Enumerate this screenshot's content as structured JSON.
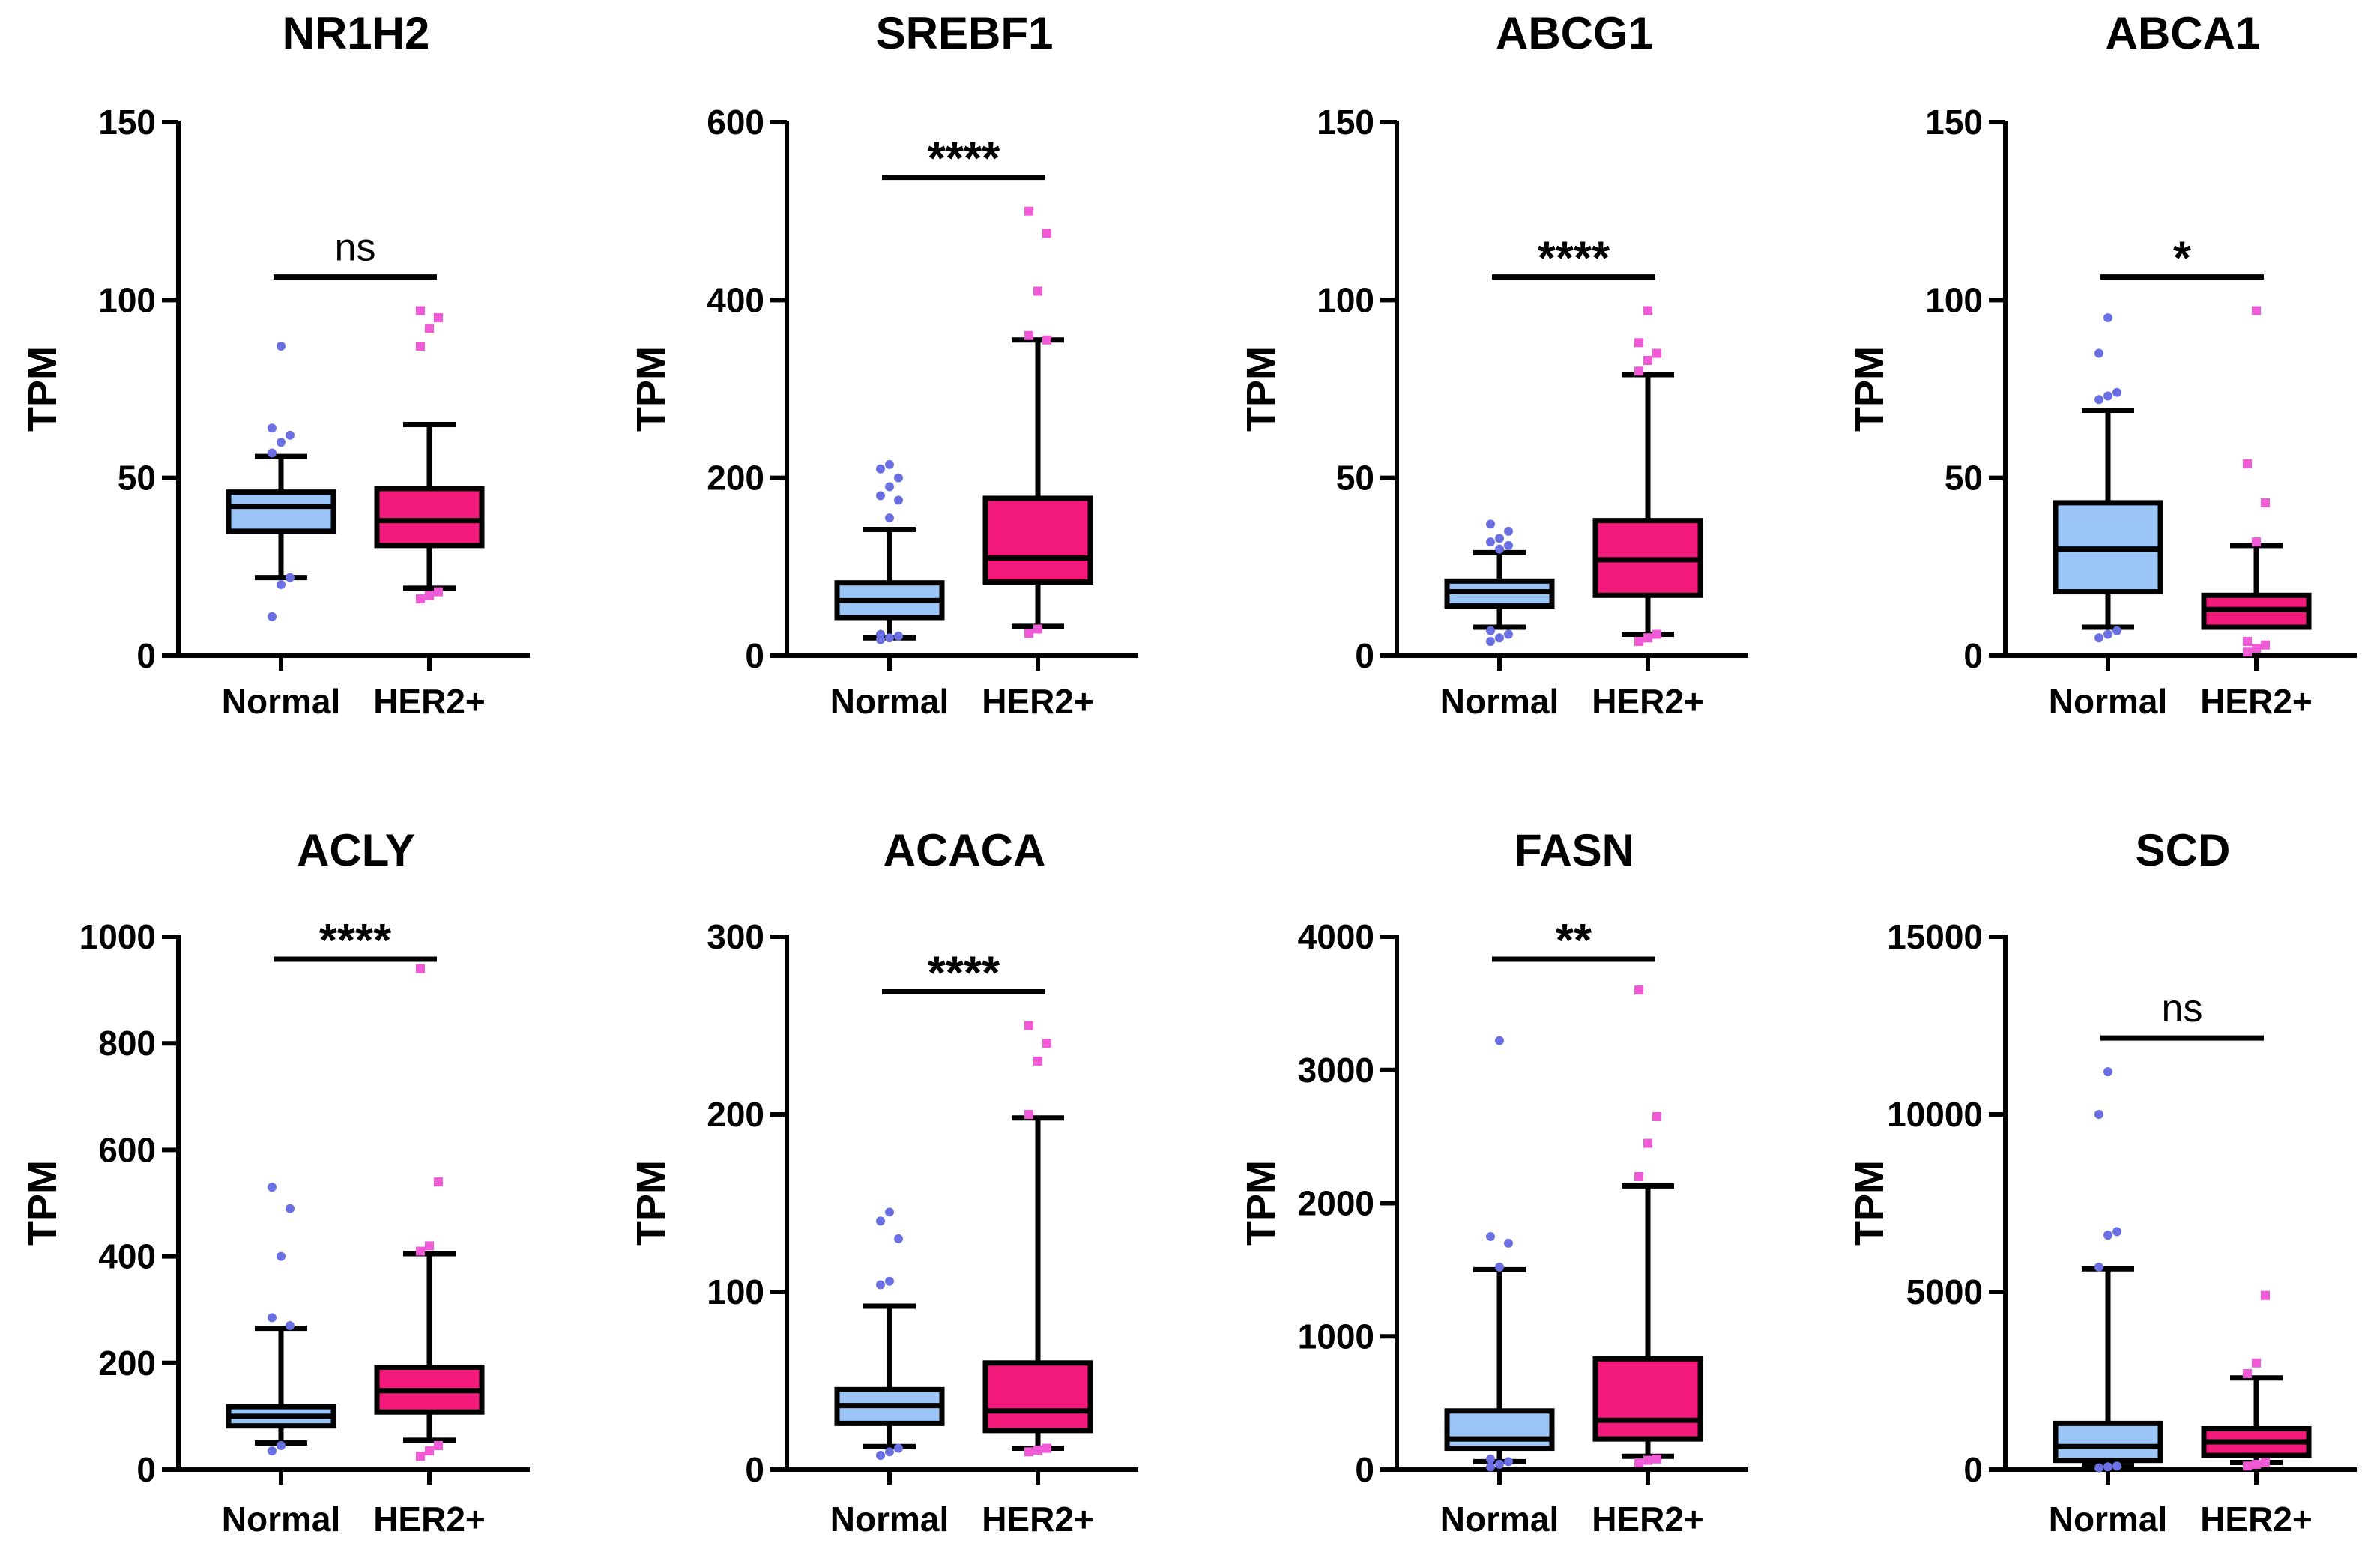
{
  "colors": {
    "normal": "#99C4F5",
    "her2": "#F2197A",
    "normal_outlier": "#6A6FE3",
    "her2_outlier": "#F05AD6",
    "axis": "#000000"
  },
  "chart_data": [
    {
      "type": "box",
      "title": "NR1H2",
      "ylabel": "TPM",
      "ylim": [
        0,
        150
      ],
      "yticks": [
        "0",
        "50",
        "100",
        "150"
      ],
      "ytick_values": [
        0,
        50,
        100,
        150
      ],
      "categories": [
        "Normal",
        "HER2+"
      ],
      "significance": "ns",
      "series": [
        {
          "min": 22,
          "q1": 35,
          "median": 42,
          "q3": 46,
          "max": 56,
          "outliers": [
            11,
            20,
            22,
            57,
            60,
            62,
            64,
            87
          ]
        },
        {
          "min": 19,
          "q1": 31,
          "median": 38,
          "q3": 47,
          "max": 65,
          "outliers": [
            16,
            17,
            18,
            87,
            92,
            95,
            97
          ]
        }
      ]
    },
    {
      "type": "box",
      "title": "SREBF1",
      "ylabel": "TPM",
      "ylim": [
        0,
        600
      ],
      "yticks": [
        "0",
        "200",
        "400",
        "600"
      ],
      "ytick_values": [
        0,
        200,
        400,
        600
      ],
      "categories": [
        "Normal",
        "HER2+"
      ],
      "significance": "****",
      "series": [
        {
          "min": 20,
          "q1": 43,
          "median": 62,
          "q3": 82,
          "max": 142,
          "outliers": [
            18,
            20,
            22,
            24,
            155,
            175,
            180,
            190,
            200,
            210,
            215
          ]
        },
        {
          "min": 33,
          "q1": 83,
          "median": 110,
          "q3": 177,
          "max": 355,
          "outliers": [
            25,
            30,
            355,
            360,
            410,
            475,
            500
          ]
        }
      ]
    },
    {
      "type": "box",
      "title": "ABCG1",
      "ylabel": "TPM",
      "ylim": [
        0,
        150
      ],
      "yticks": [
        "0",
        "50",
        "100",
        "150"
      ],
      "ytick_values": [
        0,
        50,
        100,
        150
      ],
      "categories": [
        "Normal",
        "HER2+"
      ],
      "significance": "****",
      "series": [
        {
          "min": 8,
          "q1": 14,
          "median": 18,
          "q3": 21,
          "max": 29,
          "outliers": [
            4,
            5,
            6,
            7,
            30,
            31,
            32,
            33,
            35,
            37
          ]
        },
        {
          "min": 6,
          "q1": 17,
          "median": 27,
          "q3": 38,
          "max": 79,
          "outliers": [
            4,
            5,
            6,
            80,
            83,
            85,
            88,
            97
          ]
        }
      ]
    },
    {
      "type": "box",
      "title": "ABCA1",
      "ylabel": "TPM",
      "ylim": [
        0,
        150
      ],
      "yticks": [
        "0",
        "50",
        "100",
        "150"
      ],
      "ytick_values": [
        0,
        50,
        100,
        150
      ],
      "categories": [
        "Normal",
        "HER2+"
      ],
      "significance": "*",
      "series": [
        {
          "min": 8,
          "q1": 18,
          "median": 30,
          "q3": 43,
          "max": 69,
          "outliers": [
            5,
            6,
            7,
            72,
            73,
            74,
            85,
            95
          ]
        },
        {
          "min": 8,
          "q1": 8,
          "median": 13,
          "q3": 17,
          "max": 31,
          "outliers": [
            1,
            2,
            3,
            4,
            32,
            43,
            54,
            97
          ]
        }
      ]
    },
    {
      "type": "box",
      "title": "ACLY",
      "ylabel": "TPM",
      "ylim": [
        0,
        1000
      ],
      "yticks": [
        "0",
        "200",
        "400",
        "600",
        "800",
        "1000"
      ],
      "ytick_values": [
        0,
        200,
        400,
        600,
        800,
        1000
      ],
      "categories": [
        "Normal",
        "HER2+"
      ],
      "significance": "****",
      "series": [
        {
          "min": 50,
          "q1": 82,
          "median": 100,
          "q3": 118,
          "max": 265,
          "outliers": [
            35,
            45,
            270,
            285,
            400,
            490,
            530
          ]
        },
        {
          "min": 55,
          "q1": 108,
          "median": 148,
          "q3": 192,
          "max": 405,
          "outliers": [
            25,
            35,
            45,
            410,
            420,
            540,
            940
          ]
        }
      ]
    },
    {
      "type": "box",
      "title": "ACACA",
      "ylabel": "TPM",
      "ylim": [
        0,
        300
      ],
      "yticks": [
        "0",
        "100",
        "200",
        "300"
      ],
      "ytick_values": [
        0,
        100,
        200,
        300
      ],
      "categories": [
        "Normal",
        "HER2+"
      ],
      "significance": "****",
      "series": [
        {
          "min": 13,
          "q1": 26,
          "median": 36,
          "q3": 45,
          "max": 92,
          "outliers": [
            8,
            10,
            12,
            104,
            106,
            130,
            140,
            145
          ]
        },
        {
          "min": 12,
          "q1": 22,
          "median": 33,
          "q3": 60,
          "max": 198,
          "outliers": [
            10,
            11,
            12,
            200,
            230,
            240,
            250
          ]
        }
      ]
    },
    {
      "type": "box",
      "title": "FASN",
      "ylabel": "TPM",
      "ylim": [
        0,
        4000
      ],
      "yticks": [
        "0",
        "1000",
        "2000",
        "3000",
        "4000"
      ],
      "ytick_values": [
        0,
        1000,
        2000,
        3000,
        4000
      ],
      "categories": [
        "Normal",
        "HER2+"
      ],
      "significance": "**",
      "series": [
        {
          "min": 60,
          "q1": 160,
          "median": 230,
          "q3": 440,
          "max": 1500,
          "outliers": [
            20,
            40,
            60,
            80,
            1520,
            1700,
            1750,
            3220
          ]
        },
        {
          "min": 100,
          "q1": 230,
          "median": 370,
          "q3": 830,
          "max": 2130,
          "outliers": [
            50,
            70,
            80,
            2200,
            2450,
            2650,
            3600
          ]
        }
      ]
    },
    {
      "type": "box",
      "title": "SCD",
      "ylabel": "TPM",
      "ylim": [
        0,
        15000
      ],
      "yticks": [
        "0",
        "5000",
        "10000",
        "15000"
      ],
      "ytick_values": [
        0,
        5000,
        10000,
        15000
      ],
      "categories": [
        "Normal",
        "HER2+"
      ],
      "significance": "ns",
      "series": [
        {
          "min": 150,
          "q1": 260,
          "median": 650,
          "q3": 1300,
          "max": 5650,
          "outliers": [
            50,
            80,
            100,
            5700,
            6600,
            6700,
            10000,
            11200
          ]
        },
        {
          "min": 200,
          "q1": 400,
          "median": 780,
          "q3": 1150,
          "max": 2580,
          "outliers": [
            100,
            150,
            200,
            2700,
            3000,
            4900
          ]
        }
      ]
    }
  ]
}
